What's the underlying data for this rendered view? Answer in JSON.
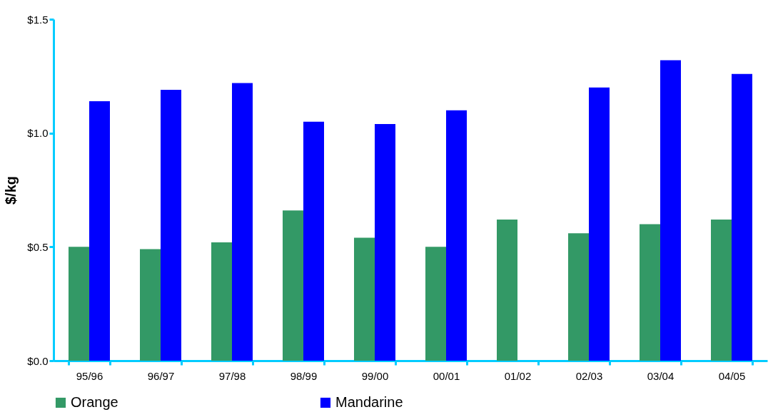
{
  "chart_data": {
    "type": "bar",
    "ylabel": "$/kg",
    "categories": [
      "95/96",
      "96/97",
      "97/98",
      "98/99",
      "99/00",
      "00/01",
      "01/02",
      "02/03",
      "03/04",
      "04/05"
    ],
    "series": [
      {
        "name": "Orange",
        "color": "#339966",
        "values": [
          0.5,
          0.49,
          0.52,
          0.66,
          0.54,
          0.5,
          0.62,
          0.56,
          0.6,
          0.62
        ]
      },
      {
        "name": "Mandarine",
        "color": "#0000ff",
        "values": [
          1.14,
          1.19,
          1.22,
          1.05,
          1.04,
          1.1,
          null,
          1.2,
          1.32,
          1.26
        ]
      }
    ],
    "ylim": [
      0,
      1.5
    ],
    "yticks": [
      {
        "value": 0,
        "label": "$0.0"
      },
      {
        "value": 0.5,
        "label": "$0.5"
      },
      {
        "value": 1,
        "label": "$1.0"
      },
      {
        "value": 1.5,
        "label": "$1.5"
      }
    ],
    "grid": false,
    "legend": "bottom"
  }
}
